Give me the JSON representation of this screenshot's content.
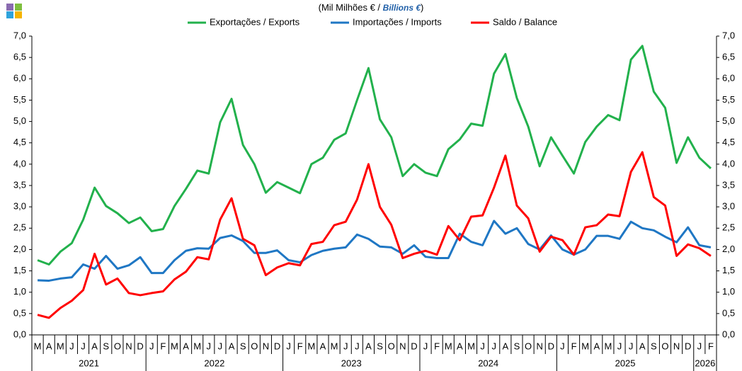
{
  "chart_data": {
    "type": "line",
    "title_parts": [
      "(Mil Milhões  € / ",
      "Billions €",
      ")"
    ],
    "categories": [
      "M",
      "A",
      "M",
      "J",
      "J",
      "A",
      "S",
      "O",
      "N",
      "D",
      "J",
      "F",
      "M",
      "A",
      "M",
      "J",
      "J",
      "A",
      "S",
      "O",
      "N",
      "D",
      "J",
      "F",
      "M",
      "A",
      "M",
      "J",
      "J",
      "A",
      "S",
      "O",
      "N",
      "D",
      "J",
      "F",
      "M",
      "A",
      "M",
      "J",
      "J",
      "A",
      "S",
      "O",
      "N",
      "D",
      "J",
      "F",
      "M",
      "A",
      "M",
      "J",
      "J",
      "A",
      "S",
      "O",
      "N",
      "D",
      "J",
      "F"
    ],
    "years": [
      "2021",
      "2022",
      "2023",
      "2024",
      "2025",
      "2026"
    ],
    "series": [
      {
        "name": "Exportações / Exports",
        "color": "#22b14c",
        "values": [
          1.75,
          1.65,
          1.95,
          2.15,
          2.7,
          3.45,
          3.02,
          2.85,
          2.62,
          2.75,
          2.43,
          2.48,
          3.02,
          3.42,
          3.85,
          3.78,
          4.98,
          5.53,
          4.45,
          4.0,
          3.33,
          3.58,
          3.45,
          3.32,
          4.0,
          4.15,
          4.57,
          4.72,
          5.5,
          6.25,
          5.05,
          4.63,
          3.72,
          4.0,
          3.8,
          3.72,
          4.35,
          4.58,
          4.95,
          4.9,
          6.12,
          6.58,
          5.55,
          4.88,
          3.95,
          4.63,
          4.2,
          3.78,
          4.52,
          4.88,
          5.15,
          5.03,
          6.45,
          6.77,
          5.7,
          5.32,
          4.03,
          4.63,
          4.15,
          3.9
        ]
      },
      {
        "name": "Importações / Imports",
        "color": "#1f77c4",
        "values": [
          1.28,
          1.27,
          1.32,
          1.35,
          1.65,
          1.55,
          1.85,
          1.55,
          1.63,
          1.82,
          1.45,
          1.45,
          1.75,
          1.97,
          2.03,
          2.02,
          2.27,
          2.33,
          2.2,
          1.92,
          1.92,
          1.98,
          1.75,
          1.7,
          1.87,
          1.97,
          2.02,
          2.05,
          2.35,
          2.25,
          2.07,
          2.05,
          1.9,
          2.1,
          1.83,
          1.8,
          1.8,
          2.37,
          2.18,
          2.1,
          2.67,
          2.37,
          2.5,
          2.13,
          2.0,
          2.33,
          2.0,
          1.88,
          2.0,
          2.32,
          2.32,
          2.25,
          2.65,
          2.5,
          2.45,
          2.3,
          2.17,
          2.52,
          2.1,
          2.05
        ]
      },
      {
        "name": "Saldo / Balance",
        "color": "#ff0000",
        "values": [
          0.47,
          0.4,
          0.63,
          0.8,
          1.05,
          1.9,
          1.18,
          1.32,
          0.98,
          0.93,
          0.98,
          1.02,
          1.3,
          1.48,
          1.82,
          1.77,
          2.7,
          3.2,
          2.25,
          2.1,
          1.4,
          1.58,
          1.68,
          1.63,
          2.13,
          2.18,
          2.57,
          2.65,
          3.17,
          4.0,
          3.0,
          2.58,
          1.8,
          1.9,
          1.97,
          1.88,
          2.55,
          2.22,
          2.77,
          2.8,
          3.45,
          4.2,
          3.03,
          2.73,
          1.95,
          2.3,
          2.22,
          1.88,
          2.52,
          2.57,
          2.82,
          2.78,
          3.82,
          4.28,
          3.23,
          3.03,
          1.85,
          2.12,
          2.03,
          1.85
        ]
      }
    ],
    "ylim": [
      0,
      7
    ],
    "yticks": [
      {
        "value": 0,
        "label": "0,0"
      },
      {
        "value": 0.5,
        "label": "0,5"
      },
      {
        "value": 1,
        "label": "1,0"
      },
      {
        "value": 1.5,
        "label": "1,5"
      },
      {
        "value": 2,
        "label": "2,0"
      },
      {
        "value": 2.5,
        "label": "2,5"
      },
      {
        "value": 3,
        "label": "3,0"
      },
      {
        "value": 3.5,
        "label": "3,5"
      },
      {
        "value": 4,
        "label": "4,0"
      },
      {
        "value": 4.5,
        "label": "4,5"
      },
      {
        "value": 5,
        "label": "5,0"
      },
      {
        "value": 5.5,
        "label": "5,5"
      },
      {
        "value": 6,
        "label": "6,0"
      },
      {
        "value": 6.5,
        "label": "6,5"
      },
      {
        "value": 7,
        "label": "7,0"
      }
    ],
    "y2lim": [
      0,
      7
    ],
    "y2ticks": [
      {
        "value": 0,
        "label": "0,0"
      },
      {
        "value": 0.5,
        "label": "0,5"
      },
      {
        "value": 1,
        "label": "1,0"
      },
      {
        "value": 1.5,
        "label": "1,5"
      },
      {
        "value": 2,
        "label": "2,0"
      },
      {
        "value": 2.5,
        "label": "2,5"
      },
      {
        "value": 3,
        "label": "3,0"
      },
      {
        "value": 3.5,
        "label": "3,5"
      },
      {
        "value": 4,
        "label": "4,0"
      },
      {
        "value": 4.5,
        "label": "4,5"
      },
      {
        "value": 5,
        "label": "5,0"
      },
      {
        "value": 5.5,
        "label": "5,5"
      },
      {
        "value": 6,
        "label": "6,0"
      },
      {
        "value": 6.5,
        "label": "6,5"
      },
      {
        "value": 7,
        "label": "7,0"
      }
    ],
    "legend": "top",
    "grid": false
  }
}
